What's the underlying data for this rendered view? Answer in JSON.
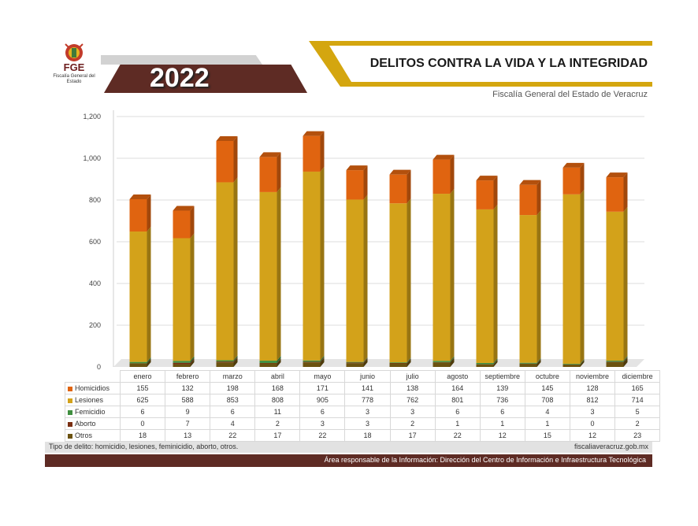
{
  "header": {
    "title": "DELITOS CONTRA LA VIDA Y LA INTEGRIDAD",
    "year": "2022",
    "subtitle": "Fiscalía General del Estado de Veracruz",
    "logo_text": "FGE",
    "logo_subtext": "Fiscalía General del Estado"
  },
  "chart_data": {
    "type": "bar",
    "stacked": true,
    "categories": [
      "enero",
      "febrero",
      "marzo",
      "abril",
      "mayo",
      "junio",
      "julio",
      "agosto",
      "septiembre",
      "octubre",
      "noviembre",
      "diciembre"
    ],
    "series": [
      {
        "name": "Otros",
        "color": "#6b5210",
        "values": [
          18,
          13,
          22,
          17,
          22,
          18,
          17,
          22,
          12,
          15,
          12,
          23
        ]
      },
      {
        "name": "Aborto",
        "color": "#7a2f12",
        "values": [
          0,
          7,
          4,
          2,
          3,
          3,
          2,
          1,
          1,
          1,
          0,
          2
        ]
      },
      {
        "name": "Femicidio",
        "color": "#3f8f3f",
        "values": [
          6,
          9,
          6,
          11,
          6,
          3,
          3,
          6,
          6,
          4,
          3,
          5
        ]
      },
      {
        "name": "Lesiones",
        "color": "#d3a21a",
        "values": [
          625,
          588,
          853,
          808,
          905,
          778,
          762,
          801,
          736,
          708,
          812,
          714
        ]
      },
      {
        "name": "Homicidios",
        "color": "#e06410",
        "values": [
          155,
          132,
          198,
          168,
          171,
          141,
          138,
          164,
          139,
          145,
          128,
          165
        ]
      }
    ],
    "legend_order": [
      "Homicidios",
      "Lesiones",
      "Femicidio",
      "Aborto",
      "Otros"
    ],
    "yticks": [
      "0",
      "200",
      "400",
      "600",
      "800",
      "1,000",
      "1,200"
    ],
    "ylim": [
      0,
      1200
    ],
    "grid": true,
    "legend": "data table below chart"
  },
  "footer": {
    "note": "Tipo de delito: homicidio, lesiones, feminicidio, aborto, otros.",
    "website": "fiscaliaveracruz.gob.mx",
    "responsible": "Área responsable de la Información: Dirección del Centro de Información e Infraestructura Tecnológica"
  }
}
